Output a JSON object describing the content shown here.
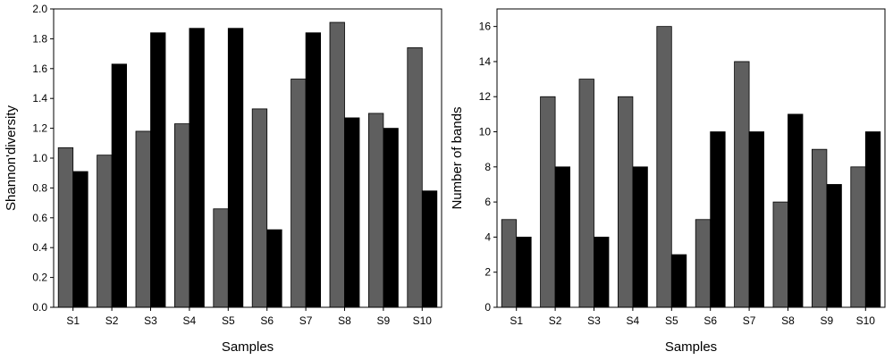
{
  "chart_data": [
    {
      "type": "bar",
      "categories": [
        "S1",
        "S2",
        "S3",
        "S4",
        "S5",
        "S6",
        "S7",
        "S8",
        "S9",
        "S10"
      ],
      "series": [
        {
          "values": [
            1.07,
            1.02,
            1.18,
            1.23,
            0.66,
            1.33,
            1.53,
            1.91,
            1.3,
            1.74
          ],
          "color": "#5f5f5f"
        },
        {
          "values": [
            0.91,
            1.63,
            1.84,
            1.87,
            1.87,
            0.52,
            1.84,
            1.27,
            1.2,
            0.78
          ],
          "color": "#000000"
        }
      ],
      "xlabel": "Samples",
      "ylabel": "Shannon'diversity",
      "ylim": [
        0,
        2.0
      ],
      "yticks": [
        "0.0",
        "0.2",
        "0.4",
        "0.6",
        "0.8",
        "1.0",
        "1.2",
        "1.4",
        "1.6",
        "1.8",
        "2.0"
      ],
      "grid": false,
      "legend": "none"
    },
    {
      "type": "bar",
      "categories": [
        "S1",
        "S2",
        "S3",
        "S4",
        "S5",
        "S6",
        "S7",
        "S8",
        "S9",
        "S10"
      ],
      "series": [
        {
          "values": [
            5,
            12,
            13,
            12,
            16,
            5,
            14,
            6,
            9,
            8
          ],
          "color": "#5f5f5f"
        },
        {
          "values": [
            4,
            8,
            4,
            8,
            3,
            10,
            10,
            11,
            7,
            10
          ],
          "color": "#000000"
        }
      ],
      "xlabel": "Samples",
      "ylabel": "Number of bands",
      "ylim": [
        0,
        17
      ],
      "yticks": [
        "0",
        "2",
        "4",
        "6",
        "8",
        "10",
        "12",
        "14",
        "16"
      ],
      "grid": false,
      "legend": "none"
    }
  ]
}
